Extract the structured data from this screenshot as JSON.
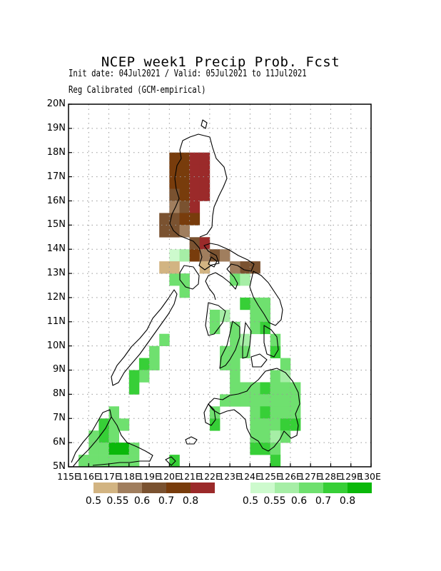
{
  "title": "NCEP week1 Precip Prob. Fcst",
  "subtitle_line1": "Init date: 04Jul2021 / Valid: 05Jul2021 to 11Jul2021",
  "subtitle_line2": "Reg Calibrated (GCM-empirical)",
  "lat_labels": [
    "20N",
    "19N",
    "18N",
    "17N",
    "16N",
    "15N",
    "14N",
    "13N",
    "12N",
    "11N",
    "10N",
    "9N",
    "8N",
    "7N",
    "6N",
    "5N"
  ],
  "lon_labels": [
    "115E",
    "116E",
    "117E",
    "118E",
    "119E",
    "120E",
    "121E",
    "122E",
    "123E",
    "124E",
    "125E",
    "126E",
    "127E",
    "128E",
    "129E",
    "130E"
  ],
  "legend_dry": {
    "colors": [
      "#d2b482",
      "#a07e5e",
      "#7a5230",
      "#783c0c",
      "#9b2a2a"
    ],
    "labels": [
      "0.5",
      "0.55",
      "0.6",
      "0.7",
      "0.8"
    ]
  },
  "legend_wet": {
    "colors": [
      "#cdfacd",
      "#a6eea6",
      "#6fe06f",
      "#37cf37",
      "#0ab80a"
    ],
    "labels": [
      "0.5",
      "0.55",
      "0.6",
      "0.7",
      "0.8"
    ]
  },
  "map_data": {
    "extent": {
      "lon": [
        115,
        130
      ],
      "lat": [
        5,
        20
      ]
    },
    "grid_cells_deg": 0.5,
    "dry_cells": [
      {
        "lon": 120.25,
        "lat": 17.75,
        "c": 3
      },
      {
        "lon": 120.75,
        "lat": 17.75,
        "c": 3
      },
      {
        "lon": 121.25,
        "lat": 17.75,
        "c": 4
      },
      {
        "lon": 121.75,
        "lat": 17.75,
        "c": 4
      },
      {
        "lon": 120.25,
        "lat": 17.25,
        "c": 3
      },
      {
        "lon": 120.75,
        "lat": 17.25,
        "c": 3
      },
      {
        "lon": 121.25,
        "lat": 17.25,
        "c": 4
      },
      {
        "lon": 121.75,
        "lat": 17.25,
        "c": 4
      },
      {
        "lon": 120.25,
        "lat": 16.75,
        "c": 3
      },
      {
        "lon": 120.75,
        "lat": 16.75,
        "c": 3
      },
      {
        "lon": 121.25,
        "lat": 16.75,
        "c": 4
      },
      {
        "lon": 121.75,
        "lat": 16.75,
        "c": 4
      },
      {
        "lon": 120.25,
        "lat": 16.25,
        "c": 2
      },
      {
        "lon": 120.75,
        "lat": 16.25,
        "c": 3
      },
      {
        "lon": 121.25,
        "lat": 16.25,
        "c": 4
      },
      {
        "lon": 121.75,
        "lat": 16.25,
        "c": 4
      },
      {
        "lon": 120.25,
        "lat": 15.75,
        "c": 1
      },
      {
        "lon": 120.75,
        "lat": 15.75,
        "c": 2
      },
      {
        "lon": 121.25,
        "lat": 15.75,
        "c": 4
      },
      {
        "lon": 119.75,
        "lat": 15.25,
        "c": 2
      },
      {
        "lon": 120.25,
        "lat": 15.25,
        "c": 2
      },
      {
        "lon": 120.75,
        "lat": 15.25,
        "c": 3
      },
      {
        "lon": 121.25,
        "lat": 15.25,
        "c": 3
      },
      {
        "lon": 119.75,
        "lat": 14.75,
        "c": 2
      },
      {
        "lon": 120.25,
        "lat": 14.75,
        "c": 2
      },
      {
        "lon": 120.75,
        "lat": 14.75,
        "c": 1
      },
      {
        "lon": 121.25,
        "lat": 14.25,
        "c": 2
      },
      {
        "lon": 121.75,
        "lat": 14.25,
        "c": 4
      },
      {
        "lon": 121.25,
        "lat": 13.75,
        "c": 3
      },
      {
        "lon": 121.75,
        "lat": 13.75,
        "c": 1
      },
      {
        "lon": 122.25,
        "lat": 13.75,
        "c": 2
      },
      {
        "lon": 122.75,
        "lat": 13.75,
        "c": 1
      },
      {
        "lon": 119.75,
        "lat": 13.25,
        "c": 0
      },
      {
        "lon": 120.25,
        "lat": 13.25,
        "c": 0
      },
      {
        "lon": 121.75,
        "lat": 13.25,
        "c": 0
      },
      {
        "lon": 123.75,
        "lat": 13.25,
        "c": 2
      },
      {
        "lon": 124.25,
        "lat": 13.25,
        "c": 2
      },
      {
        "lon": 123.25,
        "lat": 13.25,
        "c": 1
      }
    ],
    "wet_cells": [
      {
        "lon": 120.25,
        "lat": 13.75,
        "c": 0
      },
      {
        "lon": 120.75,
        "lat": 13.75,
        "c": 1
      },
      {
        "lon": 121.75,
        "lat": 14.25,
        "c": 1
      },
      {
        "lon": 120.25,
        "lat": 12.75,
        "c": 2
      },
      {
        "lon": 120.75,
        "lat": 12.75,
        "c": 2
      },
      {
        "lon": 120.75,
        "lat": 12.25,
        "c": 2
      },
      {
        "lon": 123.25,
        "lat": 12.75,
        "c": 2
      },
      {
        "lon": 123.75,
        "lat": 12.75,
        "c": 1
      },
      {
        "lon": 124.25,
        "lat": 11.75,
        "c": 2
      },
      {
        "lon": 124.75,
        "lat": 11.75,
        "c": 2
      },
      {
        "lon": 123.75,
        "lat": 11.75,
        "c": 3
      },
      {
        "lon": 122.25,
        "lat": 11.25,
        "c": 2
      },
      {
        "lon": 122.25,
        "lat": 10.75,
        "c": 2
      },
      {
        "lon": 122.75,
        "lat": 11.25,
        "c": 1
      },
      {
        "lon": 124.25,
        "lat": 11.25,
        "c": 2
      },
      {
        "lon": 124.75,
        "lat": 11.25,
        "c": 2
      },
      {
        "lon": 124.25,
        "lat": 10.75,
        "c": 2
      },
      {
        "lon": 124.75,
        "lat": 10.75,
        "c": 3
      },
      {
        "lon": 123.25,
        "lat": 10.75,
        "c": 2
      },
      {
        "lon": 123.25,
        "lat": 10.25,
        "c": 2
      },
      {
        "lon": 123.75,
        "lat": 10.25,
        "c": 1
      },
      {
        "lon": 125.25,
        "lat": 10.25,
        "c": 2
      },
      {
        "lon": 125.25,
        "lat": 9.75,
        "c": 3
      },
      {
        "lon": 122.75,
        "lat": 9.75,
        "c": 2
      },
      {
        "lon": 123.25,
        "lat": 9.75,
        "c": 2
      },
      {
        "lon": 123.75,
        "lat": 9.75,
        "c": 2
      },
      {
        "lon": 122.75,
        "lat": 9.25,
        "c": 2
      },
      {
        "lon": 123.25,
        "lat": 9.25,
        "c": 2
      },
      {
        "lon": 123.25,
        "lat": 8.75,
        "c": 2
      },
      {
        "lon": 125.25,
        "lat": 8.75,
        "c": 2
      },
      {
        "lon": 125.75,
        "lat": 8.75,
        "c": 1
      },
      {
        "lon": 125.75,
        "lat": 9.25,
        "c": 2
      },
      {
        "lon": 123.25,
        "lat": 8.25,
        "c": 2
      },
      {
        "lon": 123.75,
        "lat": 8.25,
        "c": 2
      },
      {
        "lon": 124.25,
        "lat": 8.25,
        "c": 2
      },
      {
        "lon": 124.75,
        "lat": 8.25,
        "c": 3
      },
      {
        "lon": 125.25,
        "lat": 8.25,
        "c": 2
      },
      {
        "lon": 125.75,
        "lat": 8.25,
        "c": 2
      },
      {
        "lon": 126.25,
        "lat": 8.25,
        "c": 2
      },
      {
        "lon": 122.75,
        "lat": 7.75,
        "c": 2
      },
      {
        "lon": 123.25,
        "lat": 7.75,
        "c": 2
      },
      {
        "lon": 123.75,
        "lat": 7.75,
        "c": 2
      },
      {
        "lon": 124.25,
        "lat": 7.75,
        "c": 2
      },
      {
        "lon": 124.75,
        "lat": 7.75,
        "c": 2
      },
      {
        "lon": 125.25,
        "lat": 7.75,
        "c": 2
      },
      {
        "lon": 125.75,
        "lat": 7.75,
        "c": 2
      },
      {
        "lon": 126.25,
        "lat": 7.75,
        "c": 2
      },
      {
        "lon": 122.25,
        "lat": 7.25,
        "c": 2
      },
      {
        "lon": 124.25,
        "lat": 7.25,
        "c": 2
      },
      {
        "lon": 124.75,
        "lat": 7.25,
        "c": 3
      },
      {
        "lon": 125.25,
        "lat": 7.25,
        "c": 2
      },
      {
        "lon": 125.75,
        "lat": 7.25,
        "c": 2
      },
      {
        "lon": 126.25,
        "lat": 7.25,
        "c": 2
      },
      {
        "lon": 122.25,
        "lat": 6.75,
        "c": 3
      },
      {
        "lon": 124.25,
        "lat": 6.75,
        "c": 2
      },
      {
        "lon": 124.75,
        "lat": 6.75,
        "c": 2
      },
      {
        "lon": 125.25,
        "lat": 6.75,
        "c": 2
      },
      {
        "lon": 125.75,
        "lat": 6.75,
        "c": 3
      },
      {
        "lon": 126.25,
        "lat": 6.75,
        "c": 3
      },
      {
        "lon": 124.25,
        "lat": 6.25,
        "c": 2
      },
      {
        "lon": 124.75,
        "lat": 6.25,
        "c": 2
      },
      {
        "lon": 125.25,
        "lat": 6.25,
        "c": 1
      },
      {
        "lon": 125.75,
        "lat": 6.25,
        "c": 2
      },
      {
        "lon": 124.25,
        "lat": 5.75,
        "c": 3
      },
      {
        "lon": 124.75,
        "lat": 5.75,
        "c": 3
      },
      {
        "lon": 125.25,
        "lat": 5.75,
        "c": 2
      },
      {
        "lon": 125.25,
        "lat": 5.25,
        "c": 3
      },
      {
        "lon": 119.25,
        "lat": 9.25,
        "c": 2
      },
      {
        "lon": 118.75,
        "lat": 9.25,
        "c": 3
      },
      {
        "lon": 118.75,
        "lat": 8.75,
        "c": 2
      },
      {
        "lon": 118.25,
        "lat": 8.75,
        "c": 3
      },
      {
        "lon": 118.25,
        "lat": 8.25,
        "c": 3
      },
      {
        "lon": 119.25,
        "lat": 9.75,
        "c": 2
      },
      {
        "lon": 119.75,
        "lat": 10.25,
        "c": 2
      },
      {
        "lon": 117.25,
        "lat": 7.25,
        "c": 2
      },
      {
        "lon": 117.25,
        "lat": 6.75,
        "c": 2
      },
      {
        "lon": 117.75,
        "lat": 6.75,
        "c": 2
      },
      {
        "lon": 116.75,
        "lat": 6.75,
        "c": 3
      },
      {
        "lon": 116.75,
        "lat": 6.25,
        "c": 3
      },
      {
        "lon": 117.25,
        "lat": 6.25,
        "c": 2
      },
      {
        "lon": 116.25,
        "lat": 6.25,
        "c": 2
      },
      {
        "lon": 116.25,
        "lat": 5.75,
        "c": 2
      },
      {
        "lon": 116.75,
        "lat": 5.75,
        "c": 2
      },
      {
        "lon": 117.25,
        "lat": 5.75,
        "c": 4
      },
      {
        "lon": 117.75,
        "lat": 5.75,
        "c": 4
      },
      {
        "lon": 118.25,
        "lat": 5.75,
        "c": 2
      },
      {
        "lon": 115.75,
        "lat": 5.25,
        "c": 2
      },
      {
        "lon": 116.25,
        "lat": 5.25,
        "c": 2
      },
      {
        "lon": 116.75,
        "lat": 5.25,
        "c": 2
      },
      {
        "lon": 117.25,
        "lat": 5.25,
        "c": 2
      },
      {
        "lon": 117.75,
        "lat": 5.25,
        "c": 2
      },
      {
        "lon": 118.25,
        "lat": 5.25,
        "c": 2
      },
      {
        "lon": 120.25,
        "lat": 5.25,
        "c": 3
      }
    ]
  }
}
